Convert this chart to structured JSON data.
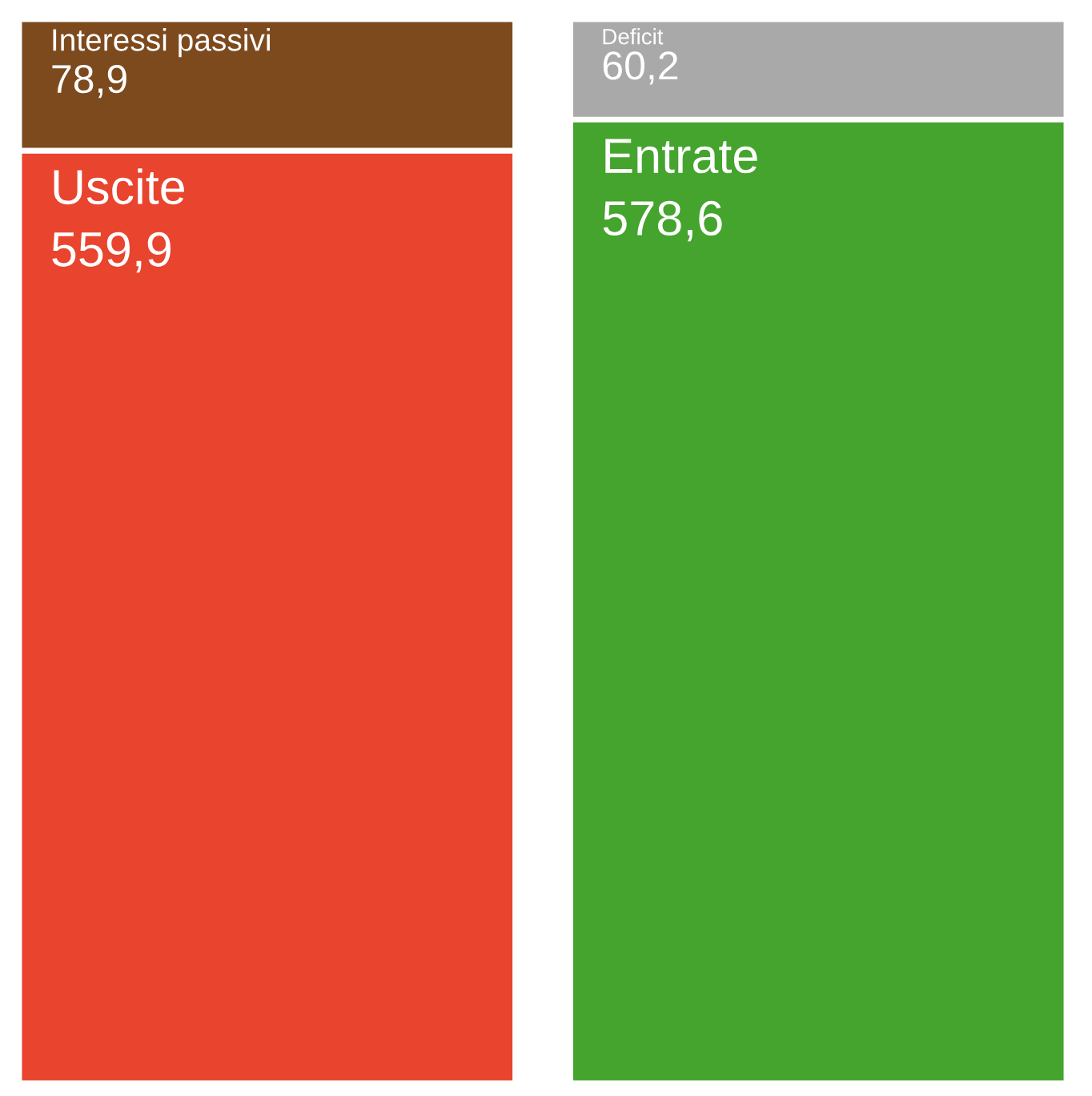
{
  "chart_data": {
    "type": "bar",
    "stacked": true,
    "categories": [
      null,
      null
    ],
    "series": [
      {
        "name": "Uscite",
        "color": "#e8442e",
        "values": [
          559.9,
          null
        ],
        "value_labels": [
          "559,9",
          null
        ]
      },
      {
        "name": "Entrate",
        "color": "#44a42d",
        "values": [
          null,
          578.6
        ],
        "value_labels": [
          null,
          "578,6"
        ]
      },
      {
        "name": "Interessi passivi",
        "color": "#7d4a1e",
        "values": [
          78.9,
          null
        ],
        "value_labels": [
          "78,9",
          null
        ]
      },
      {
        "name": "Deficit",
        "color": "#a9a9a9",
        "values": [
          null,
          60.2
        ],
        "value_labels": [
          null,
          "60,2"
        ]
      }
    ],
    "legend": false
  }
}
